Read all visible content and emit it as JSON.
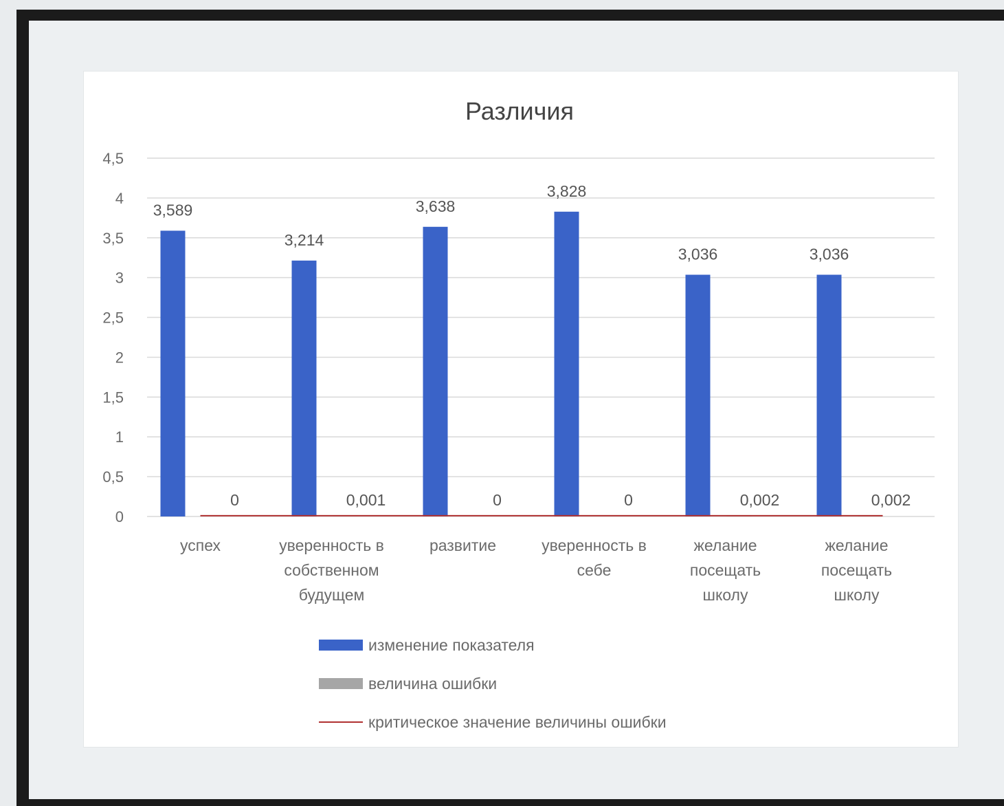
{
  "chart_data": {
    "type": "bar",
    "title": "Различия",
    "categories": [
      [
        "успех"
      ],
      [
        "уверенность в",
        "собственном",
        "будущем"
      ],
      [
        "развитие"
      ],
      [
        "уверенность в",
        "себе"
      ],
      [
        "желание",
        "посещать",
        "школу"
      ],
      [
        "желание",
        "посещать",
        "школу"
      ]
    ],
    "series": [
      {
        "name": "изменение показателя",
        "color": "#3a63c8",
        "values": [
          3.589,
          3.214,
          3.638,
          3.828,
          3.036,
          3.036
        ],
        "labels": [
          "3,589",
          "3,214",
          "3,638",
          "3,828",
          "3,036",
          "3,036"
        ]
      },
      {
        "name": "величина ошибки",
        "color": "#a6a6a6",
        "values": [
          0,
          0.001,
          0,
          0,
          0.002,
          0.002
        ],
        "labels": [
          "0",
          "0,001",
          "0",
          "0",
          "0,002",
          "0,002"
        ]
      },
      {
        "name": "критическое значение величины ошибки",
        "color": "#b03030",
        "type": "line",
        "values": [
          0.01,
          0.01,
          0.01,
          0.01,
          0.01,
          0.01
        ]
      }
    ],
    "ylim": [
      0,
      4.5
    ],
    "yticks": [
      {
        "value": 0,
        "label": "0"
      },
      {
        "value": 0.5,
        "label": "0,5"
      },
      {
        "value": 1,
        "label": "1"
      },
      {
        "value": 1.5,
        "label": "1,5"
      },
      {
        "value": 2,
        "label": "2"
      },
      {
        "value": 2.5,
        "label": "2,5"
      },
      {
        "value": 3,
        "label": "3"
      },
      {
        "value": 3.5,
        "label": "3,5"
      },
      {
        "value": 4,
        "label": "4"
      },
      {
        "value": 4.5,
        "label": "4,5"
      }
    ],
    "grid": true,
    "legend_position": "bottom"
  }
}
